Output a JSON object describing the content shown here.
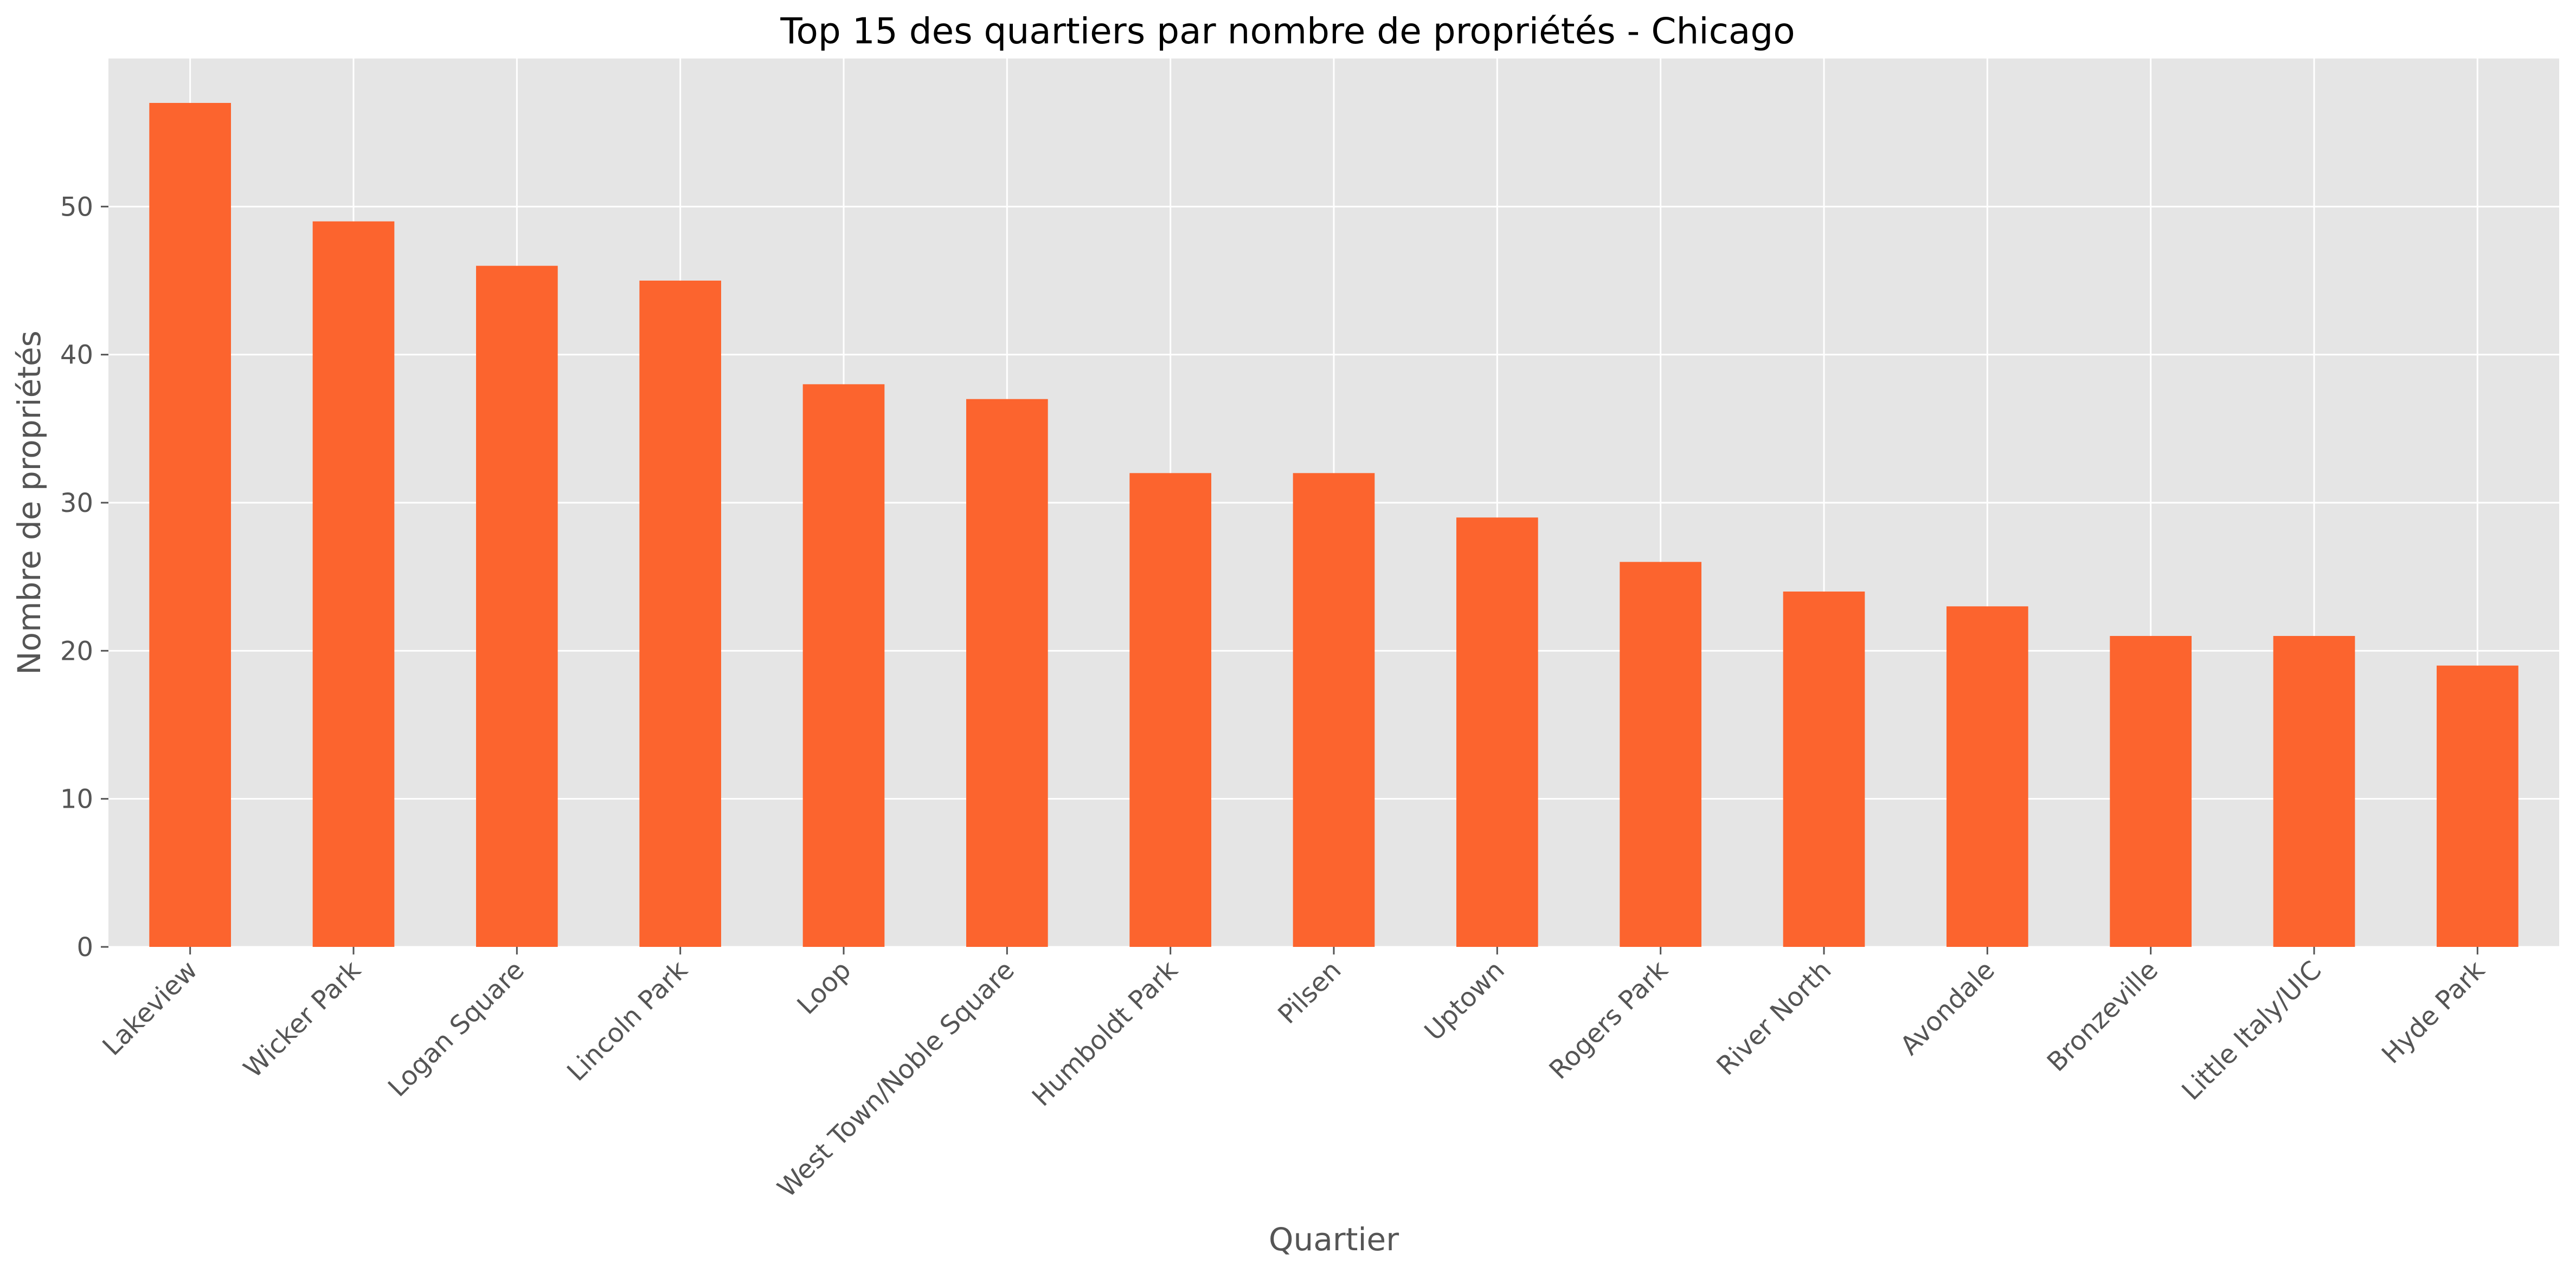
{
  "chart_data": {
    "type": "bar",
    "title": "Top 15 des quartiers par nombre de propriétés - Chicago",
    "xlabel": "Quartier",
    "ylabel": "Nombre de propriétés",
    "categories": [
      "Lakeview",
      "Wicker Park",
      "Logan Square",
      "Lincoln Park",
      "Loop",
      "West Town/Noble Square",
      "Humboldt Park",
      "Pilsen",
      "Uptown",
      "Rogers Park",
      "River North",
      "Avondale",
      "Bronzeville",
      "Little Italy/UIC",
      "Hyde Park"
    ],
    "values": [
      57,
      49,
      46,
      45,
      38,
      37,
      32,
      32,
      29,
      26,
      24,
      23,
      21,
      21,
      19
    ],
    "ylim": [
      0,
      60
    ],
    "yticks": [
      0,
      10,
      20,
      30,
      40,
      50
    ],
    "grid": true,
    "legend": "none",
    "colors": {
      "bar": "#FC642E",
      "plot_background": "#E5E5E5",
      "grid": "#FFFFFF",
      "tick_text": "#555555",
      "title_text": "#000000"
    }
  }
}
